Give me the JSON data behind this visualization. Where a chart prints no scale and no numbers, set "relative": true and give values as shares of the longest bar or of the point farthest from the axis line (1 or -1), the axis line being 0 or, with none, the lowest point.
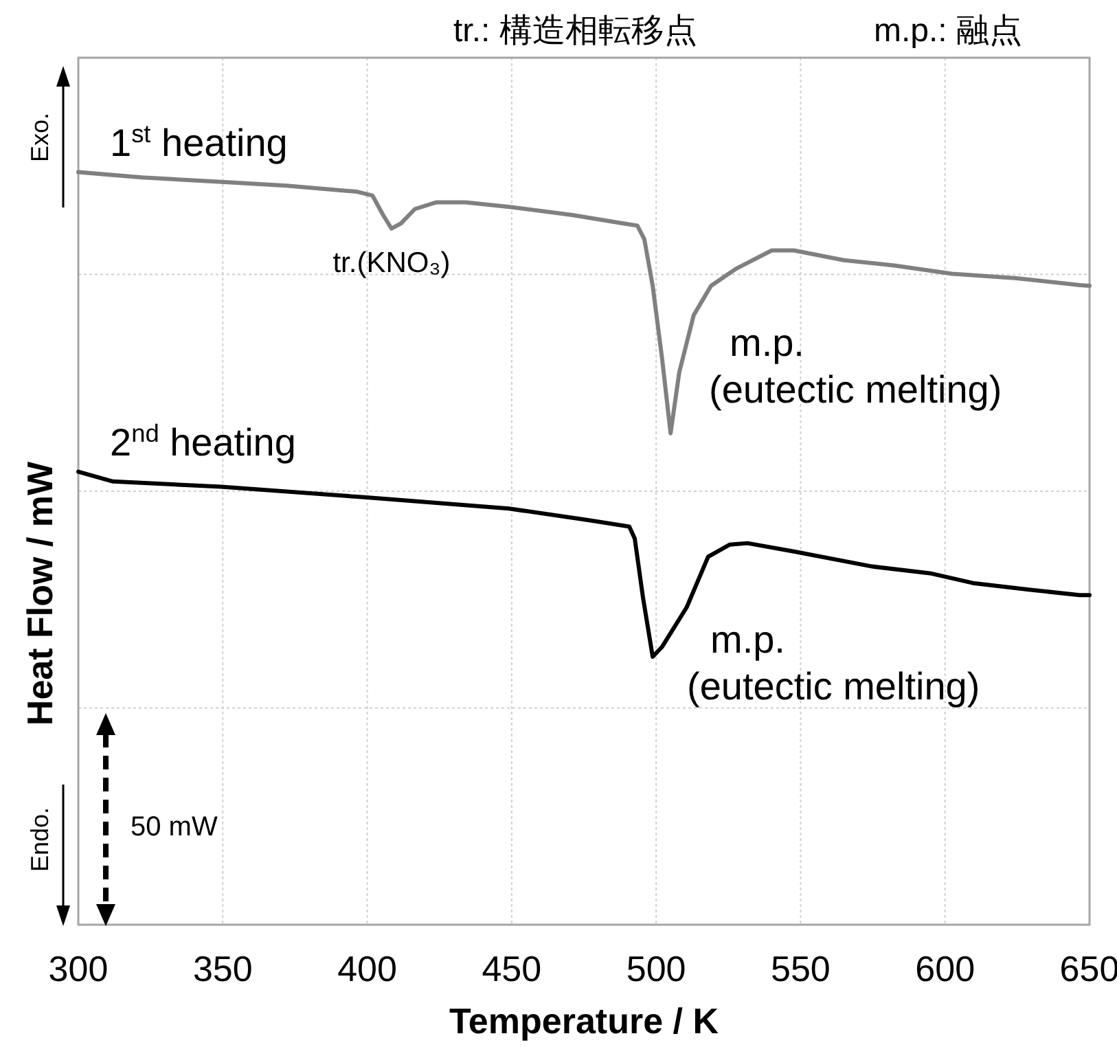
{
  "chart_data": {
    "type": "line",
    "relative": true,
    "xlabel": "Temperature / K",
    "ylabel": "Heat Flow / mW",
    "xlim": [
      300,
      650
    ],
    "xticks": [
      300,
      350,
      400,
      450,
      500,
      550,
      600,
      650
    ],
    "grid": true,
    "tick_labels": "x",
    "series": [
      {
        "name": "1$^{st}$ heating",
        "color": "#808080",
        "x": [
          300,
          322,
          349.5,
          372,
          396.5,
          401.8,
          405.5,
          408.4,
          411.7,
          416.5,
          424,
          434,
          448.8,
          471,
          488.3,
          493.5,
          495.9,
          498.8,
          502,
          505,
          508,
          513,
          519,
          527.8,
          540,
          547.7,
          565,
          582.5,
          602.4,
          624.8,
          646.6,
          650
        ],
        "values": [
          1.0,
          0.993,
          0.987,
          0.982,
          0.974,
          0.969,
          0.943,
          0.925,
          0.932,
          0.951,
          0.96,
          0.96,
          0.954,
          0.943,
          0.932,
          0.929,
          0.911,
          0.849,
          0.754,
          0.653,
          0.734,
          0.81,
          0.849,
          0.872,
          0.896,
          0.896,
          0.883,
          0.876,
          0.865,
          0.859,
          0.85,
          0.849
        ]
      },
      {
        "name": "2$^{nd}$ heating",
        "color": "#000000",
        "x": [
          300,
          312,
          349.5,
          399,
          449,
          476,
          490.7,
          492.6,
          495.4,
          498.8,
          502,
          510.6,
          518,
          525.4,
          531.6,
          547.7,
          574.8,
          594.8,
          609.6,
          629.5,
          646.6,
          650
        ],
        "values": [
          0.602,
          0.589,
          0.582,
          0.568,
          0.553,
          0.538,
          0.529,
          0.513,
          0.436,
          0.356,
          0.369,
          0.422,
          0.489,
          0.505,
          0.507,
          0.496,
          0.476,
          0.467,
          0.454,
          0.445,
          0.438,
          0.438
        ]
      }
    ],
    "annotations": [
      "tr.: 構造相転移点",
      "m.p.: 融点",
      "Exo.",
      "Endo.",
      "50 mW",
      "tr.(KNO₃)",
      "m.p.\n(eutectic melting)",
      "m.p.\n(eutectic melting)"
    ]
  }
}
